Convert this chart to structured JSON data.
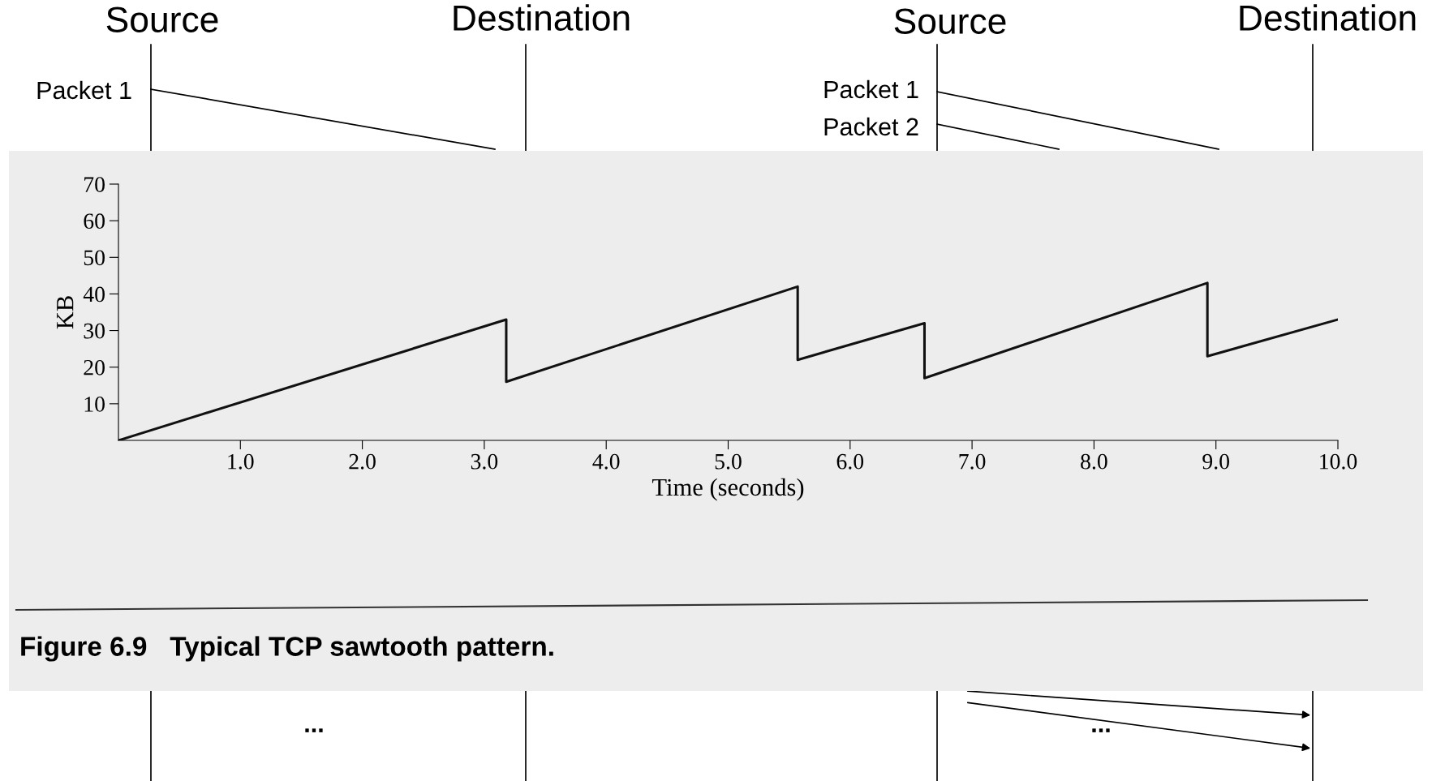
{
  "chart_data": {
    "type": "line",
    "xlabel": "Time (seconds)",
    "ylabel": "KB",
    "x": [
      0,
      3.18,
      3.18,
      5.57,
      5.57,
      6.61,
      6.61,
      8.93,
      8.93,
      10.0
    ],
    "series": [
      {
        "color": "#111111",
        "values": [
          0,
          33,
          16,
          42,
          22,
          32,
          17,
          43,
          23,
          33
        ]
      }
    ],
    "xlim": [
      0,
      10
    ],
    "ylim": [
      0,
      70
    ],
    "xticks": [
      {
        "value": 1,
        "label": "1.0"
      },
      {
        "value": 2,
        "label": "2.0"
      },
      {
        "value": 3,
        "label": "3.0"
      },
      {
        "value": 4,
        "label": "4.0"
      },
      {
        "value": 5,
        "label": "5.0"
      },
      {
        "value": 6,
        "label": "6.0"
      },
      {
        "value": 7,
        "label": "7.0"
      },
      {
        "value": 8,
        "label": "8.0"
      },
      {
        "value": 9,
        "label": "9.0"
      },
      {
        "value": 10,
        "label": "10.0"
      }
    ],
    "yticks": [
      10,
      20,
      30,
      40,
      50,
      60,
      70
    ],
    "grid": false,
    "legend": false,
    "marker": "none",
    "line_style": "solid",
    "annotations": [
      "Figure 6.9   Typical TCP sawtooth pattern.",
      "Source",
      "Destination",
      "Source",
      "Destination",
      "Packet 1",
      "Packet 1",
      "Packet 2",
      "...",
      "..."
    ]
  }
}
